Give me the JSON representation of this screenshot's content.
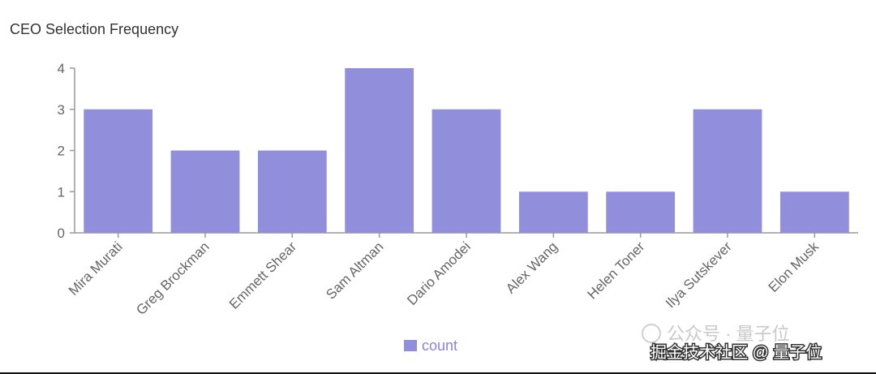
{
  "chart_data": {
    "type": "bar",
    "title": "CEO Selection Frequency",
    "categories": [
      "Mira Murati",
      "Greg Brockman",
      "Emmett Shear",
      "Sam Altman",
      "Dario Amodei",
      "Alex Wang",
      "Helen Toner",
      "Ilya Sutskever",
      "Elon Musk"
    ],
    "series": [
      {
        "name": "count",
        "values": [
          3,
          2,
          2,
          4,
          3,
          1,
          1,
          3,
          1
        ],
        "color": "#918fdc"
      }
    ],
    "yticks": [
      "0",
      "1",
      "2",
      "3",
      "4"
    ],
    "ylim": [
      0,
      4
    ],
    "grid": false,
    "legend": "bottom-center"
  },
  "watermark": {
    "line1": "公众号 · 量子位",
    "line2": "掘金技术社区 @ 量子位"
  }
}
